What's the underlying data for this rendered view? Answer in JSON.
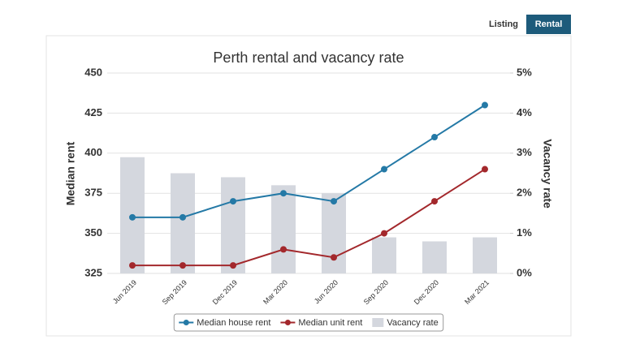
{
  "tabs": [
    "Listing",
    "Rental"
  ],
  "chart_data": {
    "type": "line",
    "title": "Perth rental and vacancy rate",
    "ylabel": "Median rent",
    "y2label": "Vacancy rate",
    "categories": [
      "Jun 2019",
      "Sep 2019",
      "Dec 2019",
      "Mar 2020",
      "Jun 2020",
      "Sep 2020",
      "Dec 2020",
      "Mar 2021"
    ],
    "series": [
      {
        "name": "Median house rent",
        "color": "#2479a6",
        "values": [
          360,
          360,
          370,
          375,
          370,
          390,
          410,
          430
        ]
      },
      {
        "name": "Median unit rent",
        "color": "#a3282c",
        "values": [
          330,
          330,
          330,
          340,
          335,
          350,
          370,
          390
        ]
      },
      {
        "name": "Vacancy rate",
        "color": "#d4d7de",
        "type": "bar",
        "axis": "y2",
        "values": [
          2.9,
          2.5,
          2.4,
          2.2,
          2.0,
          0.9,
          0.8,
          0.9
        ]
      }
    ],
    "ylim": [
      325,
      450
    ],
    "yticks": [
      325,
      350,
      375,
      400,
      425,
      450
    ],
    "y2lim": [
      0,
      5
    ],
    "y2ticks": [
      {
        "value": 0,
        "label": "0%"
      },
      {
        "value": 1,
        "label": "1%"
      },
      {
        "value": 2,
        "label": "2%"
      },
      {
        "value": 3,
        "label": "3%"
      },
      {
        "value": 4,
        "label": "4%"
      },
      {
        "value": 5,
        "label": "5%"
      }
    ],
    "grid": true,
    "legend": "bottom"
  }
}
